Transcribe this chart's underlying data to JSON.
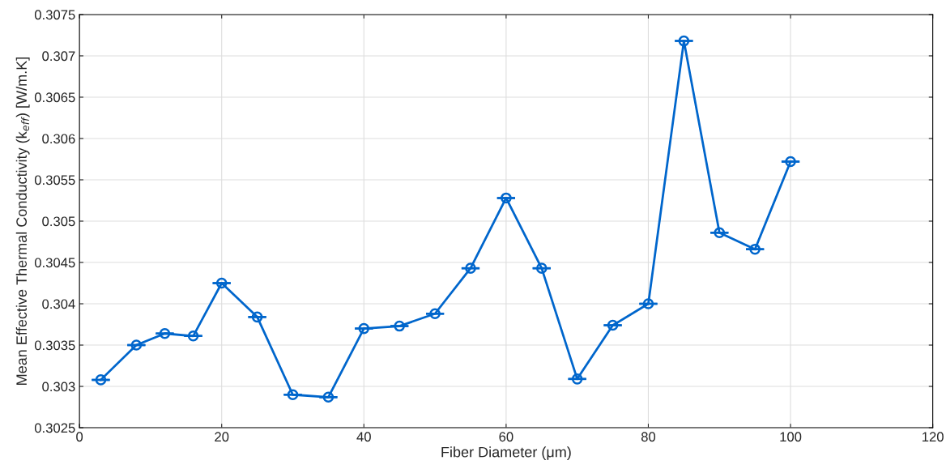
{
  "chart_data": {
    "type": "line",
    "xlabel": "Fiber Diameter (μm)",
    "ylabel": "Mean Effective Thermal Conductivity (k$_{eff}$) [W/m.K]",
    "x": [
      3,
      8,
      12,
      16,
      20,
      25,
      30,
      35,
      40,
      45,
      50,
      55,
      60,
      65,
      70,
      75,
      80,
      85,
      90,
      95,
      100
    ],
    "series": [
      {
        "color": "#0066cc",
        "values": [
          0.30308,
          0.3035,
          0.30364,
          0.30361,
          0.30425,
          0.30384,
          0.3029,
          0.30287,
          0.3037,
          0.30373,
          0.30388,
          0.30443,
          0.30528,
          0.30443,
          0.30309,
          0.30374,
          0.304,
          0.30718,
          0.30486,
          0.30466,
          0.30572
        ],
        "errors": [
          0,
          0,
          0,
          0,
          0,
          0,
          0,
          0,
          0,
          0,
          0,
          0,
          0,
          0,
          0,
          0,
          0,
          0,
          0,
          0,
          0
        ]
      }
    ],
    "xlim": [
      0,
      120
    ],
    "xticks": [
      0,
      20,
      40,
      60,
      80,
      100,
      120
    ],
    "ylim": [
      0.3025,
      0.3075
    ],
    "yticks": [
      0.3025,
      0.303,
      0.3035,
      0.304,
      0.3045,
      0.305,
      0.3055,
      0.306,
      0.3065,
      0.307,
      0.3075
    ],
    "grid": true,
    "marker": "circle",
    "line_style": "solid"
  }
}
